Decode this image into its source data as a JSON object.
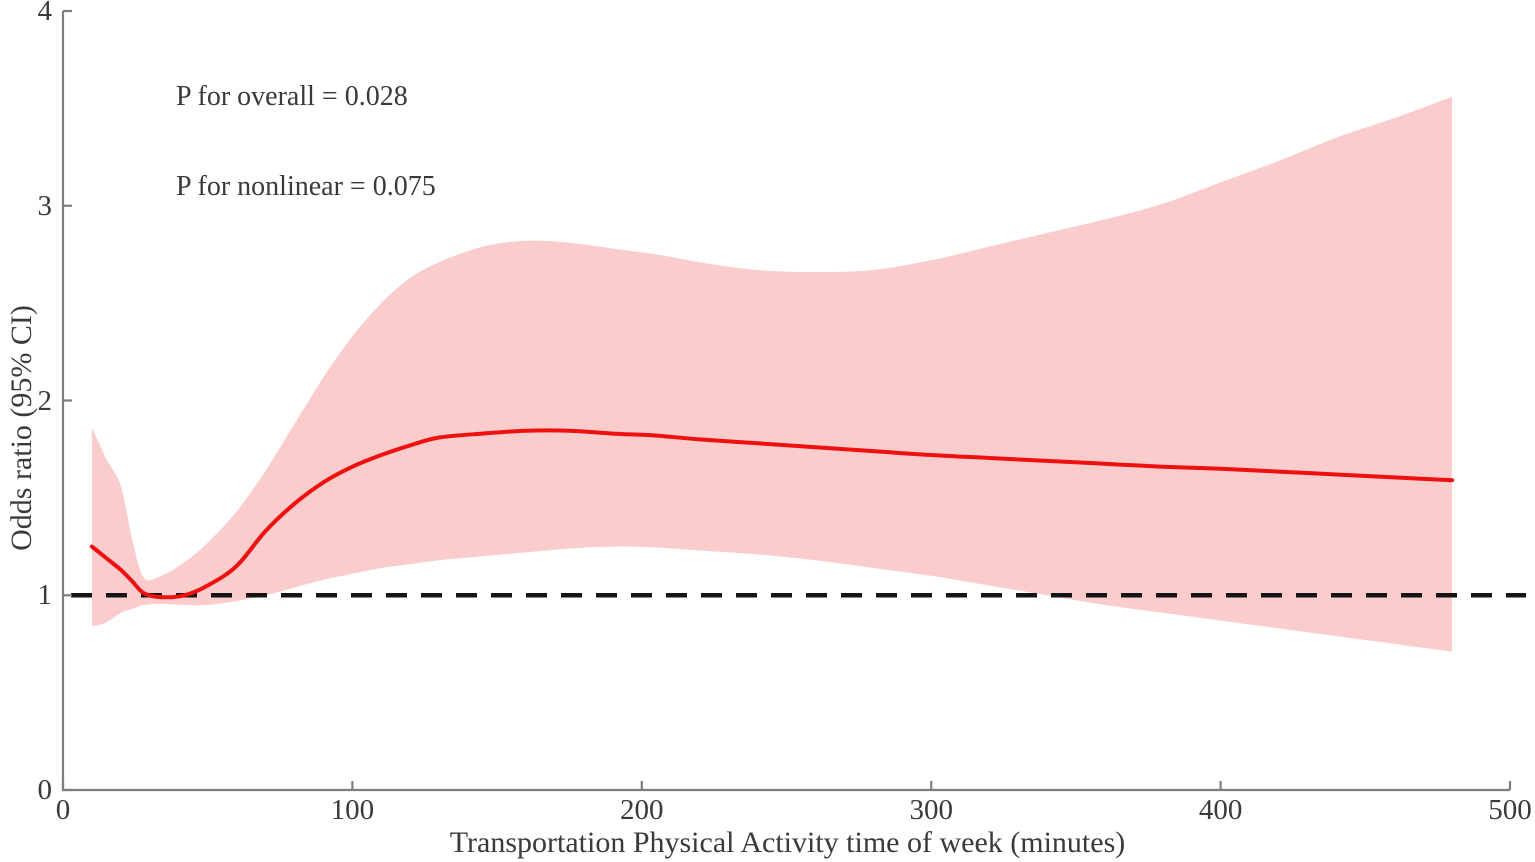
{
  "chart_data": {
    "type": "line",
    "title": "",
    "xlabel": "Transportation Physical Activity time of week (minutes)",
    "ylabel": "Odds ratio (95% CI)",
    "xlim": [
      0,
      500
    ],
    "ylim": [
      0,
      4
    ],
    "x_ticks": [
      0,
      100,
      200,
      300,
      400,
      500
    ],
    "y_ticks": [
      0,
      1,
      2,
      3,
      4
    ],
    "grid": false,
    "legend": "none",
    "reference_line_y": 1,
    "annotations": [
      "P for overall = 0.028",
      "P for nonlinear = 0.075"
    ],
    "x": [
      10,
      15,
      20,
      24,
      28,
      34,
      42,
      50,
      60,
      70,
      80,
      90,
      100,
      110,
      120,
      130,
      145,
      160,
      175,
      190,
      205,
      220,
      240,
      260,
      280,
      300,
      320,
      340,
      360,
      380,
      400,
      420,
      440,
      460,
      480
    ],
    "series": [
      {
        "name": "odds_ratio",
        "values": [
          1.25,
          1.19,
          1.13,
          1.07,
          1.01,
          0.99,
          1.0,
          1.05,
          1.15,
          1.33,
          1.47,
          1.58,
          1.66,
          1.72,
          1.77,
          1.81,
          1.83,
          1.845,
          1.845,
          1.83,
          1.82,
          1.8,
          1.78,
          1.76,
          1.74,
          1.72,
          1.705,
          1.69,
          1.675,
          1.66,
          1.65,
          1.635,
          1.62,
          1.605,
          1.59
        ]
      },
      {
        "name": "ci_lower",
        "values": [
          0.84,
          0.86,
          0.91,
          0.93,
          0.95,
          0.955,
          0.95,
          0.95,
          0.97,
          1.0,
          1.04,
          1.08,
          1.11,
          1.14,
          1.16,
          1.18,
          1.2,
          1.22,
          1.24,
          1.25,
          1.245,
          1.23,
          1.21,
          1.18,
          1.14,
          1.1,
          1.05,
          1.0,
          0.95,
          0.91,
          0.87,
          0.83,
          0.79,
          0.75,
          0.71
        ]
      },
      {
        "name": "ci_upper",
        "values": [
          1.86,
          1.7,
          1.56,
          1.28,
          1.09,
          1.1,
          1.17,
          1.27,
          1.43,
          1.64,
          1.88,
          2.12,
          2.33,
          2.5,
          2.63,
          2.71,
          2.79,
          2.82,
          2.81,
          2.78,
          2.75,
          2.71,
          2.67,
          2.66,
          2.67,
          2.72,
          2.79,
          2.86,
          2.93,
          3.01,
          3.12,
          3.23,
          3.35,
          3.45,
          3.56
        ]
      }
    ],
    "colors": {
      "line": "#EF1010",
      "band": "#FACCCC",
      "reference_line": "#141414",
      "axis": "#7E7E7E",
      "text": "#3A3A3A"
    }
  }
}
